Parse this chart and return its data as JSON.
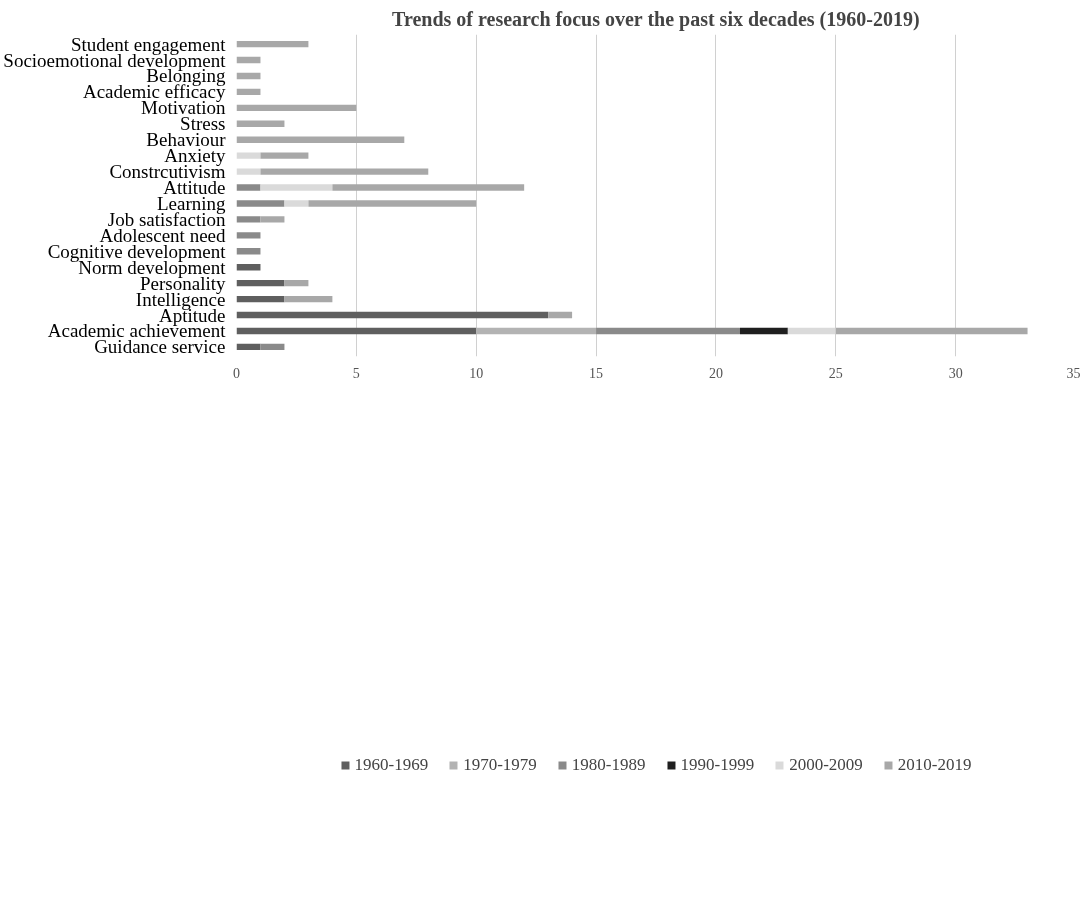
{
  "chart_data": {
    "type": "bar",
    "orientation": "horizontal",
    "stacked": true,
    "title": "Trends of research focus over the past six decades (1960-2019)",
    "categories": [
      "Student engagement",
      "Socioemotional development",
      "Belonging",
      "Academic efficacy",
      "Motivation",
      "Stress",
      "Behaviour",
      "Anxiety",
      "Constrcutivism",
      "Attitude",
      "Learning",
      "Job satisfaction",
      "Adolescent need",
      "Cognitive development",
      "Norm development",
      "Personality",
      "Intelligence",
      "Aptitude",
      "Academic achievement",
      "Guidance service"
    ],
    "series": [
      {
        "name": "1960-1969",
        "color": "#5f5f5f",
        "values": [
          null,
          null,
          null,
          null,
          null,
          null,
          null,
          null,
          null,
          null,
          null,
          null,
          null,
          null,
          1,
          2,
          2,
          13,
          10,
          1
        ]
      },
      {
        "name": "1970-1979",
        "color": "#b3b3b3",
        "values": [
          null,
          null,
          null,
          null,
          null,
          null,
          null,
          null,
          null,
          null,
          null,
          null,
          null,
          null,
          null,
          null,
          null,
          null,
          5,
          null
        ]
      },
      {
        "name": "1980-1989",
        "color": "#8a8a8a",
        "values": [
          null,
          null,
          null,
          null,
          null,
          null,
          null,
          null,
          null,
          1,
          2,
          1,
          1,
          1,
          null,
          null,
          null,
          null,
          6,
          1
        ]
      },
      {
        "name": "1990-1999",
        "color": "#1f1f1f",
        "values": [
          null,
          null,
          null,
          null,
          null,
          null,
          null,
          null,
          null,
          null,
          null,
          null,
          null,
          null,
          null,
          null,
          null,
          null,
          2,
          null
        ]
      },
      {
        "name": "2000-2009",
        "color": "#dadada",
        "values": [
          null,
          null,
          null,
          null,
          null,
          null,
          null,
          1,
          1,
          3,
          1,
          null,
          null,
          null,
          null,
          null,
          null,
          null,
          2,
          null
        ]
      },
      {
        "name": "2010-2019",
        "color": "#a8a8a8",
        "values": [
          3,
          1,
          1,
          1,
          5,
          2,
          7,
          2,
          7,
          8,
          7,
          1,
          null,
          null,
          null,
          1,
          2,
          1,
          8,
          null
        ]
      }
    ],
    "xlim": [
      0,
      35
    ],
    "xticks": [
      0,
      5,
      10,
      15,
      20,
      25,
      30,
      35
    ],
    "grid": "x",
    "legend": "bottom"
  }
}
